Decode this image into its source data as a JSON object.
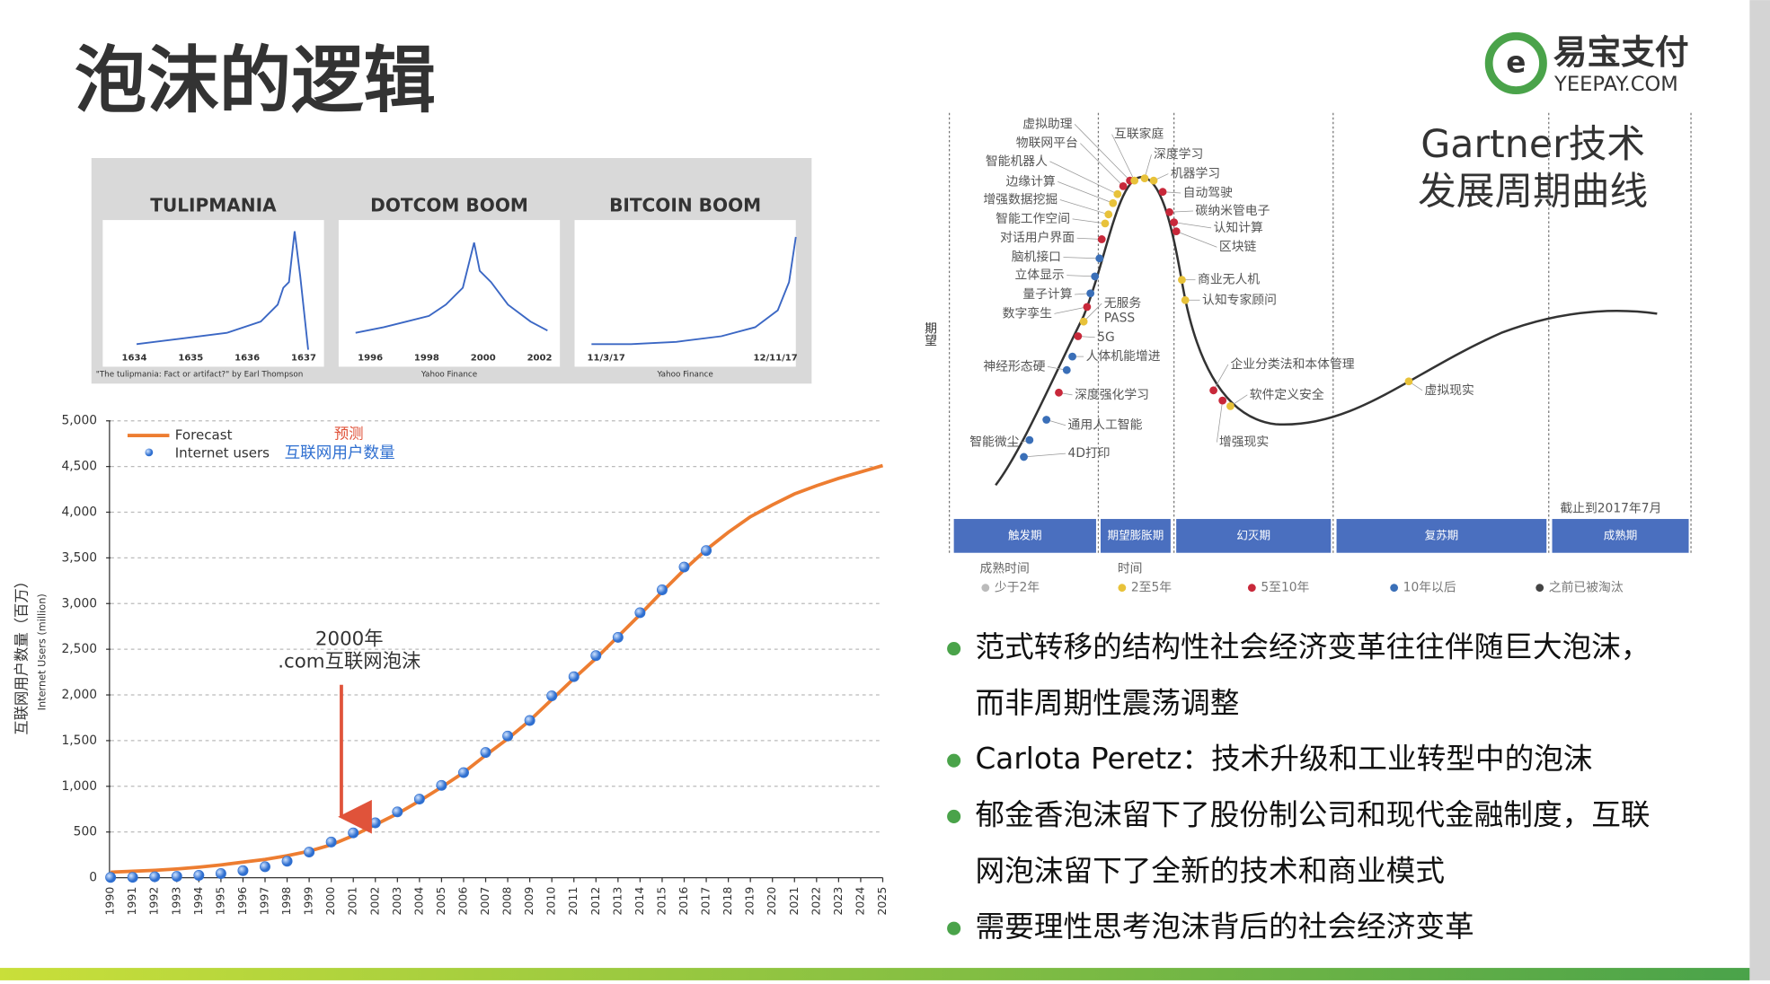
{
  "title": "泡沫的逻辑",
  "logo": {
    "name": "易宝支付",
    "domain": "YEEPAY.COM"
  },
  "bubbles": [
    {
      "title": "TULIPMANIA",
      "ticks": [
        "1634",
        "1635",
        "1636",
        "1637"
      ],
      "source": "\"The tulipmania: Fact or artifact?\" by Earl Thompson"
    },
    {
      "title": "DOTCOM BOOM",
      "ticks": [
        "1996",
        "1998",
        "2000",
        "2002"
      ],
      "source": "Yahoo Finance"
    },
    {
      "title": "BITCOIN BOOM",
      "ticks": [
        "11/3/17",
        "12/11/17"
      ],
      "source": "Yahoo Finance"
    }
  ],
  "chart_data": {
    "type": "line",
    "y_label": "互联网用户数量（百万）",
    "y_label_en": "Internet Users (million)",
    "categories": [
      "1990",
      "1991",
      "1992",
      "1993",
      "1994",
      "1995",
      "1996",
      "1997",
      "1998",
      "1999",
      "2000",
      "2001",
      "2002",
      "2003",
      "2004",
      "2005",
      "2006",
      "2007",
      "2008",
      "2009",
      "2010",
      "2011",
      "2012",
      "2013",
      "2014",
      "2015",
      "2016",
      "2017",
      "2018",
      "2019",
      "2020",
      "2021",
      "2022",
      "2023",
      "2024",
      "2025"
    ],
    "series": [
      {
        "name": "Forecast",
        "name_cn": "预测",
        "color": "#ed7d31",
        "values": [
          60,
          70,
          80,
          95,
          115,
          140,
          170,
          200,
          240,
          290,
          360,
          460,
          580,
          700,
          840,
          990,
          1150,
          1340,
          1520,
          1720,
          1950,
          2180,
          2400,
          2640,
          2880,
          3130,
          3370,
          3590,
          3780,
          3950,
          4080,
          4200,
          4290,
          4370,
          4440,
          4510
        ]
      },
      {
        "name": "Internet users",
        "name_cn": "互联网用户数量",
        "color": "#2f6fd0",
        "values": [
          3,
          4,
          10,
          14,
          25,
          45,
          77,
          120,
          180,
          280,
          390,
          490,
          600,
          720,
          860,
          1010,
          1150,
          1370,
          1550,
          1720,
          1990,
          2200,
          2430,
          2630,
          2900,
          3150,
          3400,
          3580,
          null,
          null,
          null,
          null,
          null,
          null,
          null,
          null
        ]
      }
    ],
    "ylim": [
      0,
      5000
    ],
    "yticks": [
      0,
      500,
      {
        "value": 1000,
        "label": "1,000"
      },
      {
        "value": 1500,
        "label": "1,500"
      },
      {
        "value": 2000,
        "label": "2,000"
      },
      {
        "value": 2500,
        "label": "2,500"
      },
      {
        "value": 3000,
        "label": "3,000"
      },
      {
        "value": 3500,
        "label": "3,500"
      },
      {
        "value": 4000,
        "label": "4,000"
      },
      {
        "value": 4500,
        "label": "4,500"
      },
      {
        "value": 5000,
        "label": "5,000"
      }
    ],
    "grid": true,
    "annotation": {
      "text": [
        "2000年",
        ".com互联网泡沫"
      ],
      "at": "2000"
    }
  },
  "hype_cycle": {
    "title": [
      "Gartner技术",
      "发展周期曲线"
    ],
    "y_label": "期望",
    "note": "截止到2017年7月",
    "labels": [
      {
        "text": "虚拟助理",
        "color": "#c8283a"
      },
      {
        "text": "物联网平台",
        "color": "#c8283a"
      },
      {
        "text": "智能机器人",
        "color": "#e8c23a"
      },
      {
        "text": "边缘计算",
        "color": "#e8c23a"
      },
      {
        "text": "增强数据挖掘",
        "color": "#e8c23a"
      },
      {
        "text": "智能工作空间",
        "color": "#e8c23a"
      },
      {
        "text": "对话用户界面",
        "color": "#c8283a"
      },
      {
        "text": "脑机接口",
        "color": "#3a6fb8"
      },
      {
        "text": "立体显示",
        "color": "#3a6fb8"
      },
      {
        "text": "量子计算",
        "color": "#3a6fb8"
      },
      {
        "text": "数字孪生",
        "color": "#c8283a"
      },
      {
        "text": "无服务",
        "color": "#e8c23a"
      },
      {
        "text": "PASS"
      },
      {
        "text": "5G",
        "color": "#c8283a"
      },
      {
        "text": "人体机能增进",
        "color": "#3a6fb8"
      },
      {
        "text": "神经形态硬",
        "color": "#3a6fb8"
      },
      {
        "text": "深度强化学习",
        "color": "#c8283a"
      },
      {
        "text": "通用人工智能",
        "color": "#3a6fb8"
      },
      {
        "text": "智能微尘",
        "color": "#3a6fb8"
      },
      {
        "text": "4D打印",
        "color": "#3a6fb8"
      },
      {
        "text": "互联家庭",
        "color": "#e8c23a"
      },
      {
        "text": "深度学习",
        "color": "#e8c23a"
      },
      {
        "text": "机器学习",
        "color": "#e8c23a"
      },
      {
        "text": "自动驾驶",
        "color": "#c8283a"
      },
      {
        "text": "碳纳米管电子",
        "color": "#c8283a"
      },
      {
        "text": "认知计算",
        "color": "#c8283a"
      },
      {
        "text": "区块链",
        "color": "#c8283a"
      },
      {
        "text": "商业无人机",
        "color": "#e8c23a"
      },
      {
        "text": "认知专家顾问",
        "color": "#e8c23a"
      },
      {
        "text": "企业分类法和本体管理",
        "color": "#c8283a"
      },
      {
        "text": "软件定义安全",
        "color": "#e8c23a"
      },
      {
        "text": "增强现实",
        "color": "#c8283a"
      },
      {
        "text": "虚拟现实",
        "color": "#e8c23a"
      }
    ],
    "phases": [
      "触发期",
      "期望膨胀期",
      "幻灭期",
      "复苏期",
      "成熟期"
    ],
    "legend_title": [
      "成熟时间",
      "时间"
    ],
    "legend": [
      {
        "text": "少于2年",
        "color": "#bbbbbb"
      },
      {
        "text": "2至5年",
        "color": "#e8c23a"
      },
      {
        "text": "5至10年",
        "color": "#c8283a"
      },
      {
        "text": "10年以后",
        "color": "#3a6fb8"
      },
      {
        "text": "之前已被淘汰",
        "color": "#444444"
      }
    ]
  },
  "bullets": [
    [
      "范式转移的结构性社会经济变革往往伴随巨大泡沫，",
      "而非周期性震荡调整"
    ],
    [
      "Carlota Peretz：技术升级和工业转型中的泡沫"
    ],
    [
      "郁金香泡沫留下了股份制公司和现代金融制度，互联",
      "网泡沫留下了全新的技术和商业模式"
    ],
    [
      "需要理性思考泡沫背后的社会经济变革"
    ]
  ]
}
